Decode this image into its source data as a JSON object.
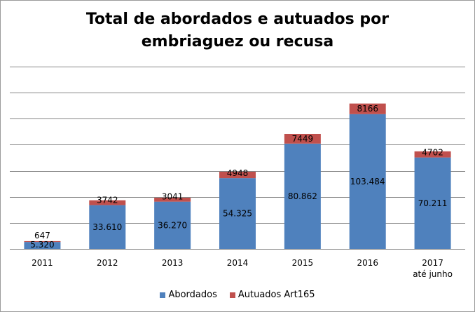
{
  "chart_data": {
    "type": "bar",
    "stacked": true,
    "title_lines": [
      "Total de abordados e autuados por",
      "embriaguez ou recusa"
    ],
    "categories": [
      [
        "2011"
      ],
      [
        "2012"
      ],
      [
        "2013"
      ],
      [
        "2014"
      ],
      [
        "2015"
      ],
      [
        "2016"
      ],
      [
        "2017",
        "até junho"
      ]
    ],
    "series": [
      {
        "name": "Abordados",
        "color": "#4f81bd",
        "values": [
          5320,
          33610,
          36270,
          54325,
          80862,
          103484,
          70211
        ],
        "labels": [
          "5.320",
          "33.610",
          "36.270",
          "54.325",
          "80.862",
          "103.484",
          "70.211"
        ]
      },
      {
        "name": "Autuados Art165",
        "color": "#c0504d",
        "values": [
          647,
          3742,
          3041,
          4948,
          7449,
          8166,
          4702
        ],
        "labels": [
          "647",
          "3742",
          "3041",
          "4948",
          "7449",
          "8166",
          "4702"
        ]
      }
    ],
    "ylim": [
      0,
      140000
    ],
    "grid": true,
    "legend_position": "bottom"
  }
}
